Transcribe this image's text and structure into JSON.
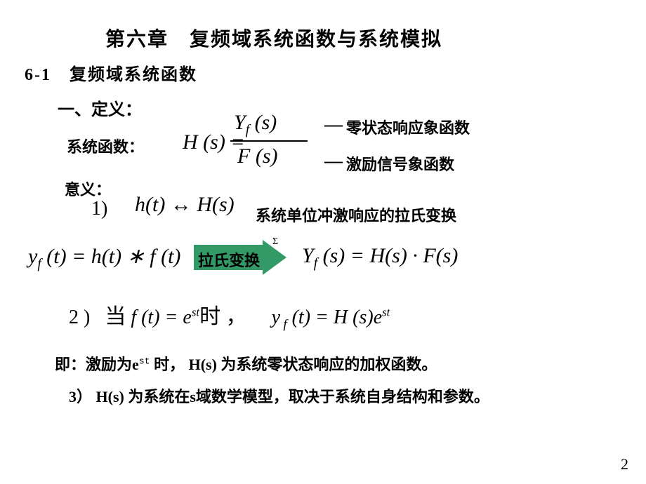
{
  "chapter_title": "第六章　复频域系统函数与系统模拟",
  "section": "6-1　复频域系统函数",
  "def_label": "一、定义：",
  "sys_label": "系统函数：",
  "hs_left": "H (s) =",
  "frac_num": "Y",
  "frac_num_sub": "f",
  "frac_num_tail": " (s)",
  "frac_den": "F (s)",
  "dash": "—",
  "anno_zero": "零状态响应象函数",
  "anno_exc": "激励信号象函数",
  "meaning_label": "意义：",
  "item1_num": "1)",
  "item1_eq": "h(t) ↔ H(s)",
  "anno_unit": "系统单位冲激响应的拉氏变换",
  "conv_left_y": "y",
  "conv_left_sub": "f",
  "conv_left_rest": " (t) = h(t) ∗ f (t)",
  "arrow_label": "拉氏变换",
  "sigma": "Σ",
  "yfs_y": "Y",
  "yfs_sub": "f",
  "yfs_rest": " (s) = H(s) · F(s)",
  "item2_num": "2 )",
  "item2_dang": "当",
  "item2_f": "f (t) = e",
  "item2_sup": "st",
  "item2_shi": "时 ，",
  "item2_yf_y": "y",
  "item2_yf_sub": " f",
  "item2_yf_rest": " (t) = H (s)e",
  "item2_yf_sup": "st",
  "concl1_pre": "即：激励为e",
  "concl1_sup": "st",
  "concl1_post": " 时，  H(s) 为系统零状态响应的加权函数。",
  "concl2": "3）  H(s) 为系统在s域数学模型，取决于系统自身结构和参数。",
  "page": "2",
  "colors": {
    "arrow_fill": "#339966",
    "text": "#000000",
    "bg": "#ffffff"
  }
}
